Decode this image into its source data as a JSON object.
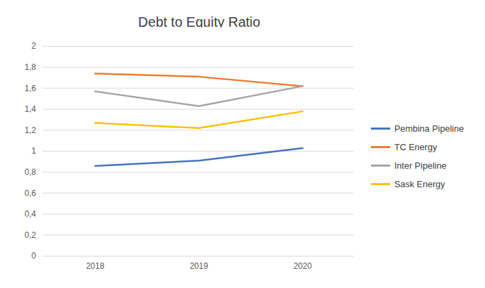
{
  "chart_data": {
    "type": "line",
    "title": "Debt to Equity Ratio",
    "categories": [
      "2018",
      "2019",
      "2020"
    ],
    "series": [
      {
        "name": "Pembina Pipeline",
        "color": "#4472c4",
        "values": [
          0.86,
          0.91,
          1.03
        ]
      },
      {
        "name": "TC Energy",
        "color": "#ed7d31",
        "values": [
          1.74,
          1.71,
          1.62
        ]
      },
      {
        "name": "Inter Pipeline",
        "color": "#a5a5a5",
        "values": [
          1.57,
          1.43,
          1.62
        ]
      },
      {
        "name": "Sask Energy",
        "color": "#ffc000",
        "values": [
          1.27,
          1.22,
          1.38
        ]
      }
    ],
    "ylim": [
      0,
      2
    ],
    "yticks": [
      0,
      {
        "value": 0.2,
        "label": "0,2"
      },
      {
        "value": 0.4,
        "label": "0,4"
      },
      {
        "value": 0.6,
        "label": "0,6"
      },
      {
        "value": 0.8,
        "label": "0,8"
      },
      1,
      {
        "value": 1.2,
        "label": "1,2"
      },
      {
        "value": 1.4,
        "label": "1,4"
      },
      {
        "value": 1.6,
        "label": "1,6"
      },
      {
        "value": 1.8,
        "label": "1,8"
      },
      2
    ],
    "grid": true,
    "legend": "right"
  }
}
